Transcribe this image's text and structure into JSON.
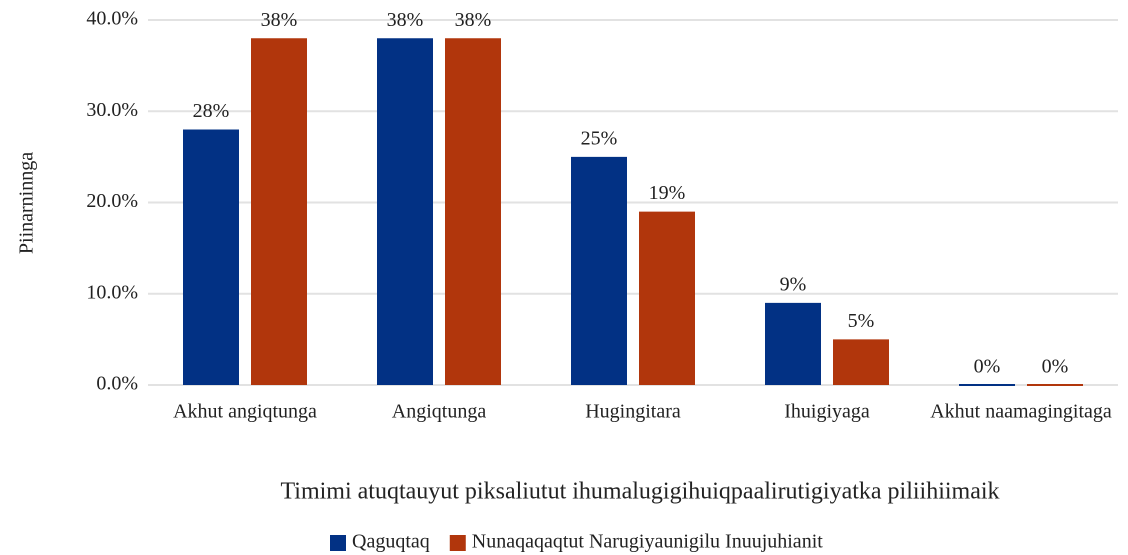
{
  "chart_data": {
    "type": "bar",
    "y_label": "Piinarninnga",
    "x_label": "Timimi atuqtauyut piksaliutut ihumalugigihuiqpaalirutigiyatka piliihiimaik",
    "categories": [
      "Akhut angiqtunga",
      "Angiqtunga",
      "Hugingitara",
      "Ihuigiyaga",
      "Akhut naamagingitaga"
    ],
    "series": [
      {
        "name": "Qaguqtaq",
        "color": "#023184",
        "values": [
          28,
          38,
          25,
          9,
          0
        ],
        "value_labels": [
          "28%",
          "38%",
          "25%",
          "9%",
          "0%"
        ]
      },
      {
        "name": "Nunaqaqaqtut Narugiyaunigilu Inuujuhianit",
        "color": "#b1360c",
        "values": [
          38,
          38,
          19,
          5,
          0
        ],
        "value_labels": [
          "38%",
          "38%",
          "19%",
          "5%",
          "0%"
        ]
      }
    ],
    "ylim": [
      0,
      40
    ],
    "yticks": [
      {
        "value": 0,
        "label": "0.0%"
      },
      {
        "value": 10,
        "label": "10.0%"
      },
      {
        "value": 20,
        "label": "20.0%"
      },
      {
        "value": 30,
        "label": "30.0%"
      },
      {
        "value": 40,
        "label": "40.0%"
      }
    ],
    "grid": true,
    "legend": "bottom"
  }
}
